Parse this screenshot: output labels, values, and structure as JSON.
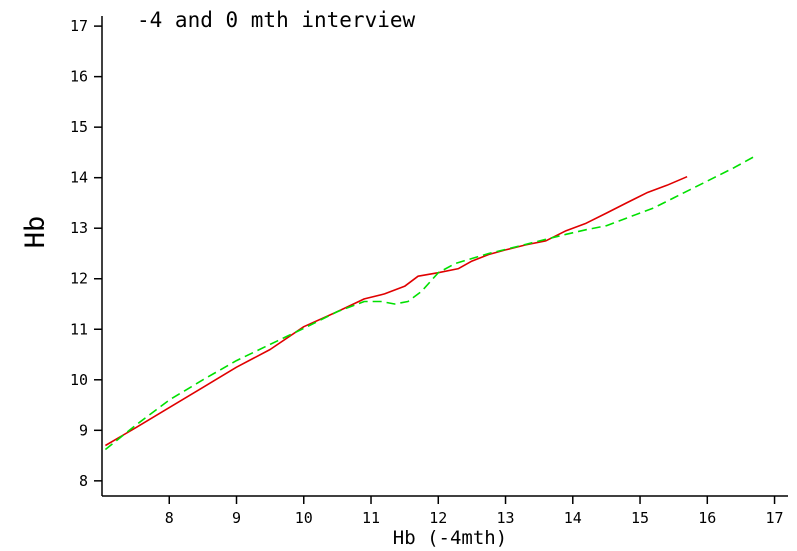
{
  "chart_data": {
    "type": "line",
    "title": "-4 and 0 mth interview",
    "xlabel": "Hb (-4mth)",
    "ylabel": "Hb",
    "xlim": [
      7.0,
      17.2
    ],
    "ylim": [
      7.7,
      17.2
    ],
    "xticks": [
      8,
      9,
      10,
      11,
      12,
      13,
      14,
      15,
      16,
      17
    ],
    "yticks": [
      8,
      9,
      10,
      11,
      12,
      13,
      14,
      15,
      16,
      17
    ],
    "grid": false,
    "series": [
      {
        "color": "#e00000",
        "dash": "solid",
        "points": [
          [
            7.05,
            8.7
          ],
          [
            7.5,
            9.05
          ],
          [
            8.0,
            9.45
          ],
          [
            8.5,
            9.85
          ],
          [
            9.0,
            10.25
          ],
          [
            9.5,
            10.6
          ],
          [
            10.0,
            11.05
          ],
          [
            10.5,
            11.35
          ],
          [
            10.9,
            11.6
          ],
          [
            11.2,
            11.7
          ],
          [
            11.5,
            11.85
          ],
          [
            11.7,
            12.05
          ],
          [
            12.0,
            12.12
          ],
          [
            12.3,
            12.2
          ],
          [
            12.5,
            12.35
          ],
          [
            12.75,
            12.48
          ],
          [
            13.0,
            12.57
          ],
          [
            13.3,
            12.67
          ],
          [
            13.6,
            12.75
          ],
          [
            13.9,
            12.95
          ],
          [
            14.2,
            13.1
          ],
          [
            14.5,
            13.3
          ],
          [
            14.8,
            13.5
          ],
          [
            15.1,
            13.7
          ],
          [
            15.4,
            13.85
          ],
          [
            15.7,
            14.02
          ]
        ]
      },
      {
        "color": "#00e000",
        "dash": "dashed",
        "points": [
          [
            7.05,
            8.62
          ],
          [
            7.5,
            9.1
          ],
          [
            8.0,
            9.6
          ],
          [
            8.5,
            10.0
          ],
          [
            9.0,
            10.38
          ],
          [
            9.5,
            10.7
          ],
          [
            10.0,
            11.02
          ],
          [
            10.5,
            11.35
          ],
          [
            10.9,
            11.55
          ],
          [
            11.15,
            11.55
          ],
          [
            11.35,
            11.5
          ],
          [
            11.55,
            11.55
          ],
          [
            11.75,
            11.75
          ],
          [
            12.0,
            12.12
          ],
          [
            12.25,
            12.3
          ],
          [
            12.5,
            12.4
          ],
          [
            12.75,
            12.5
          ],
          [
            13.0,
            12.58
          ],
          [
            13.3,
            12.68
          ],
          [
            13.6,
            12.78
          ],
          [
            13.9,
            12.88
          ],
          [
            14.2,
            12.97
          ],
          [
            14.5,
            13.05
          ],
          [
            14.8,
            13.2
          ],
          [
            15.2,
            13.4
          ],
          [
            15.5,
            13.6
          ],
          [
            15.8,
            13.8
          ],
          [
            16.1,
            14.0
          ],
          [
            16.4,
            14.2
          ],
          [
            16.7,
            14.42
          ]
        ]
      }
    ]
  }
}
